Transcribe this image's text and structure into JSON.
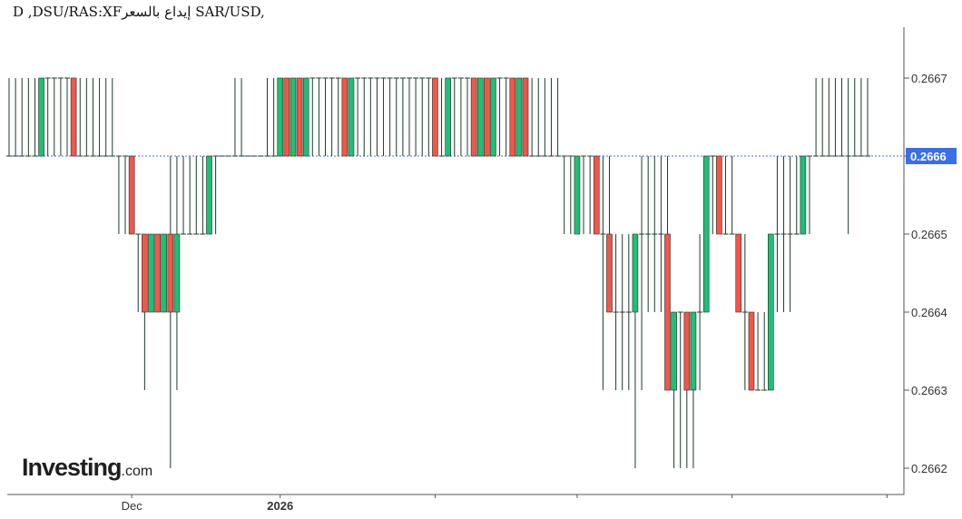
{
  "title": "D ,DSU/RAS:XFإيداع بالسعر SAR/USD,",
  "logo": {
    "main": "Investing",
    "suffix": ".com"
  },
  "colors": {
    "up": "#1fbf75",
    "down": "#f0574a",
    "wick": "#1d3b2a",
    "current_line": "#3b6fe8",
    "axis": "#555555",
    "grid_text": "#333333"
  },
  "chart_data": {
    "type": "candlestick",
    "xlabel": "",
    "ylabel": "",
    "ylim": [
      0.26615,
      0.26675
    ],
    "current_price": 0.2666,
    "current_price_label": "0.2666",
    "y_ticks": [
      {
        "value": 0.2667,
        "label": "0.2667"
      },
      {
        "value": 0.2666,
        "label": "0.2666"
      },
      {
        "value": 0.2665,
        "label": "0.2665"
      },
      {
        "value": 0.2664,
        "label": "0.2664"
      },
      {
        "value": 0.2663,
        "label": "0.2663"
      },
      {
        "value": 0.2662,
        "label": "0.2662"
      }
    ],
    "x_ticks": [
      {
        "index": 19,
        "label": "Dec",
        "bold": false
      },
      {
        "index": 42,
        "label": "2026",
        "bold": true
      },
      {
        "index": 66,
        "label": "",
        "bold": false
      },
      {
        "index": 88,
        "label": "",
        "bold": false
      },
      {
        "index": 112,
        "label": "",
        "bold": false
      },
      {
        "index": 136,
        "label": "",
        "bold": false
      }
    ],
    "candles": [
      [
        0.2666,
        0.2667,
        0.2666,
        0.2666
      ],
      [
        0.2666,
        0.2667,
        0.2666,
        0.2666
      ],
      [
        0.2666,
        0.2667,
        0.2666,
        0.2666
      ],
      [
        0.2666,
        0.2667,
        0.2666,
        0.2666
      ],
      [
        0.2666,
        0.2667,
        0.2666,
        0.2666
      ],
      [
        0.2666,
        0.2667,
        0.2666,
        0.2667
      ],
      [
        0.2667,
        0.2667,
        0.2666,
        0.2667
      ],
      [
        0.2667,
        0.2667,
        0.2666,
        0.2667
      ],
      [
        0.2667,
        0.2667,
        0.2666,
        0.2667
      ],
      [
        0.2667,
        0.2667,
        0.2666,
        0.2667
      ],
      [
        0.2667,
        0.2667,
        0.2666,
        0.2666
      ],
      [
        0.2666,
        0.2667,
        0.2666,
        0.2666
      ],
      [
        0.2666,
        0.2667,
        0.2666,
        0.2666
      ],
      [
        0.2666,
        0.2667,
        0.2666,
        0.2666
      ],
      [
        0.2666,
        0.2667,
        0.2666,
        0.2666
      ],
      [
        0.2666,
        0.2667,
        0.2666,
        0.2666
      ],
      [
        0.2666,
        0.2667,
        0.2666,
        0.2666
      ],
      [
        0.2666,
        0.2666,
        0.2665,
        0.2666
      ],
      [
        0.2666,
        0.2666,
        0.2665,
        0.2666
      ],
      [
        0.2666,
        0.2666,
        0.2665,
        0.2665
      ],
      [
        0.2665,
        0.2665,
        0.2664,
        0.2665
      ],
      [
        0.2665,
        0.2665,
        0.2663,
        0.2664
      ],
      [
        0.2664,
        0.2665,
        0.2664,
        0.2665
      ],
      [
        0.2665,
        0.2665,
        0.2664,
        0.2664
      ],
      [
        0.2664,
        0.2665,
        0.2664,
        0.2665
      ],
      [
        0.2665,
        0.2666,
        0.2662,
        0.2664
      ],
      [
        0.2664,
        0.2666,
        0.2663,
        0.2665
      ],
      [
        0.2665,
        0.2666,
        0.2665,
        0.2665
      ],
      [
        0.2665,
        0.2666,
        0.2665,
        0.2665
      ],
      [
        0.2665,
        0.2666,
        0.2665,
        0.2665
      ],
      [
        0.2665,
        0.2666,
        0.2665,
        0.2665
      ],
      [
        0.2665,
        0.2666,
        0.2665,
        0.2666
      ],
      [
        0.2666,
        0.2666,
        0.2665,
        0.2666
      ],
      [
        0.2666,
        0.2666,
        0.2666,
        0.2666
      ],
      [
        0.2666,
        0.2666,
        0.2666,
        0.2666
      ],
      [
        0.2666,
        0.2667,
        0.2666,
        0.2666
      ],
      [
        0.2666,
        0.2667,
        0.2666,
        0.2666
      ],
      [
        0.2666,
        0.2666,
        0.2666,
        0.2666
      ],
      [
        0.2666,
        0.2666,
        0.2666,
        0.2666
      ],
      [
        0.2666,
        0.2666,
        0.2666,
        0.2666
      ],
      [
        0.2666,
        0.2667,
        0.2666,
        0.2666
      ],
      [
        0.2666,
        0.2667,
        0.2666,
        0.2666
      ],
      [
        0.2666,
        0.2667,
        0.2666,
        0.2667
      ],
      [
        0.2667,
        0.2667,
        0.2666,
        0.2666
      ],
      [
        0.2666,
        0.2667,
        0.2666,
        0.2667
      ],
      [
        0.2667,
        0.2667,
        0.2666,
        0.2666
      ],
      [
        0.2666,
        0.2667,
        0.2666,
        0.2667
      ],
      [
        0.2667,
        0.2667,
        0.2666,
        0.2667
      ],
      [
        0.2667,
        0.2667,
        0.2666,
        0.2667
      ],
      [
        0.2667,
        0.2667,
        0.2666,
        0.2667
      ],
      [
        0.2667,
        0.2667,
        0.2666,
        0.2667
      ],
      [
        0.2667,
        0.2667,
        0.2666,
        0.2667
      ],
      [
        0.2667,
        0.2667,
        0.2666,
        0.2666
      ],
      [
        0.2666,
        0.2667,
        0.2666,
        0.2667
      ],
      [
        0.2667,
        0.2667,
        0.2666,
        0.2667
      ],
      [
        0.2667,
        0.2667,
        0.2666,
        0.2667
      ],
      [
        0.2667,
        0.2667,
        0.2666,
        0.2667
      ],
      [
        0.2667,
        0.2667,
        0.2666,
        0.2667
      ],
      [
        0.2667,
        0.2667,
        0.2666,
        0.2667
      ],
      [
        0.2667,
        0.2667,
        0.2666,
        0.2667
      ],
      [
        0.2667,
        0.2667,
        0.2666,
        0.2667
      ],
      [
        0.2667,
        0.2667,
        0.2666,
        0.2667
      ],
      [
        0.2667,
        0.2667,
        0.2666,
        0.2667
      ],
      [
        0.2667,
        0.2667,
        0.2666,
        0.2667
      ],
      [
        0.2667,
        0.2667,
        0.2666,
        0.2667
      ],
      [
        0.2667,
        0.2667,
        0.2666,
        0.2667
      ],
      [
        0.2667,
        0.2667,
        0.2666,
        0.2666
      ],
      [
        0.2666,
        0.2667,
        0.2666,
        0.2666
      ],
      [
        0.2666,
        0.2667,
        0.2666,
        0.2667
      ],
      [
        0.2667,
        0.2667,
        0.2666,
        0.2667
      ],
      [
        0.2667,
        0.2667,
        0.2666,
        0.2667
      ],
      [
        0.2667,
        0.2667,
        0.2666,
        0.2667
      ],
      [
        0.2667,
        0.2667,
        0.2666,
        0.2666
      ],
      [
        0.2666,
        0.2667,
        0.2666,
        0.2667
      ],
      [
        0.2667,
        0.2667,
        0.2666,
        0.2666
      ],
      [
        0.2666,
        0.2667,
        0.2666,
        0.2667
      ],
      [
        0.2667,
        0.2667,
        0.2666,
        0.2667
      ],
      [
        0.2667,
        0.2667,
        0.2666,
        0.2667
      ],
      [
        0.2667,
        0.2667,
        0.2666,
        0.2666
      ],
      [
        0.2666,
        0.2667,
        0.2666,
        0.2667
      ],
      [
        0.2667,
        0.2667,
        0.2666,
        0.2666
      ],
      [
        0.2666,
        0.2667,
        0.2666,
        0.2666
      ],
      [
        0.2666,
        0.2667,
        0.2666,
        0.2666
      ],
      [
        0.2666,
        0.2667,
        0.2666,
        0.2666
      ],
      [
        0.2666,
        0.2667,
        0.2666,
        0.2666
      ],
      [
        0.2666,
        0.2667,
        0.2666,
        0.2666
      ],
      [
        0.2666,
        0.2666,
        0.2665,
        0.2666
      ],
      [
        0.2666,
        0.2666,
        0.2665,
        0.2666
      ],
      [
        0.2665,
        0.2666,
        0.2665,
        0.2666
      ],
      [
        0.2666,
        0.2666,
        0.2665,
        0.2666
      ],
      [
        0.2666,
        0.2666,
        0.2665,
        0.2666
      ],
      [
        0.2666,
        0.2666,
        0.2665,
        0.2665
      ],
      [
        0.2665,
        0.2666,
        0.2663,
        0.2665
      ],
      [
        0.2665,
        0.2666,
        0.2664,
        0.2664
      ],
      [
        0.2664,
        0.2665,
        0.2663,
        0.2664
      ],
      [
        0.2664,
        0.2665,
        0.2663,
        0.2664
      ],
      [
        0.2664,
        0.2665,
        0.2663,
        0.2664
      ],
      [
        0.2664,
        0.2665,
        0.2662,
        0.2665
      ],
      [
        0.2665,
        0.2666,
        0.2663,
        0.2665
      ],
      [
        0.2665,
        0.2666,
        0.2664,
        0.2665
      ],
      [
        0.2665,
        0.2666,
        0.2664,
        0.2665
      ],
      [
        0.2665,
        0.2666,
        0.2664,
        0.2665
      ],
      [
        0.2665,
        0.2666,
        0.2663,
        0.2663
      ],
      [
        0.2663,
        0.2664,
        0.2662,
        0.2664
      ],
      [
        0.2664,
        0.2664,
        0.2662,
        0.2664
      ],
      [
        0.2664,
        0.2664,
        0.2662,
        0.2663
      ],
      [
        0.2663,
        0.2664,
        0.2662,
        0.2664
      ],
      [
        0.2664,
        0.2665,
        0.2663,
        0.2664
      ],
      [
        0.2664,
        0.2666,
        0.2664,
        0.2666
      ],
      [
        0.2666,
        0.2666,
        0.2665,
        0.2666
      ],
      [
        0.2666,
        0.2666,
        0.2665,
        0.2665
      ],
      [
        0.2665,
        0.2666,
        0.2665,
        0.2665
      ],
      [
        0.2665,
        0.2666,
        0.2665,
        0.2665
      ],
      [
        0.2665,
        0.2665,
        0.2664,
        0.2664
      ],
      [
        0.2664,
        0.2665,
        0.2663,
        0.2664
      ],
      [
        0.2664,
        0.2664,
        0.2663,
        0.2663
      ],
      [
        0.2663,
        0.2664,
        0.2663,
        0.2663
      ],
      [
        0.2663,
        0.2664,
        0.2663,
        0.2663
      ],
      [
        0.2663,
        0.2665,
        0.2663,
        0.2665
      ],
      [
        0.2665,
        0.2666,
        0.2664,
        0.2665
      ],
      [
        0.2665,
        0.2666,
        0.2664,
        0.2665
      ],
      [
        0.2665,
        0.2666,
        0.2664,
        0.2665
      ],
      [
        0.2665,
        0.2666,
        0.2665,
        0.2665
      ],
      [
        0.2665,
        0.2666,
        0.2665,
        0.2666
      ],
      [
        0.2666,
        0.2666,
        0.2665,
        0.2666
      ],
      [
        0.2666,
        0.2667,
        0.2666,
        0.2666
      ],
      [
        0.2666,
        0.2667,
        0.2666,
        0.2666
      ],
      [
        0.2666,
        0.2667,
        0.2666,
        0.2666
      ],
      [
        0.2666,
        0.2667,
        0.2666,
        0.2666
      ],
      [
        0.2666,
        0.2667,
        0.2666,
        0.2666
      ],
      [
        0.2666,
        0.2667,
        0.2665,
        0.2666
      ],
      [
        0.2666,
        0.2667,
        0.2666,
        0.2666
      ],
      [
        0.2666,
        0.2667,
        0.2666,
        0.2666
      ],
      [
        0.2666,
        0.2667,
        0.2666,
        0.2666
      ]
    ]
  }
}
